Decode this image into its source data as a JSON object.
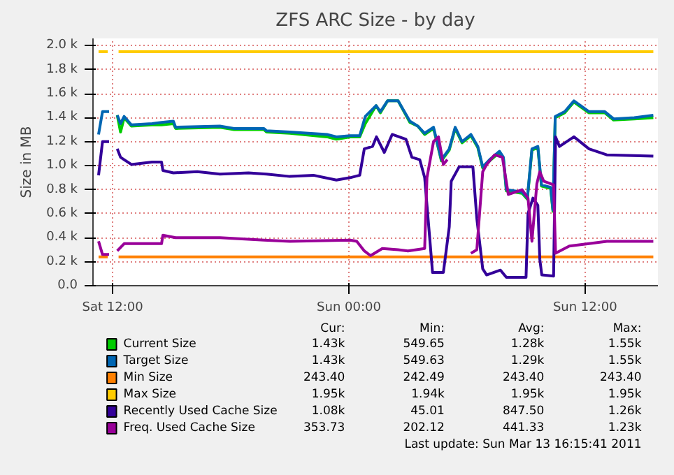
{
  "chart_data": {
    "type": "line",
    "title": "ZFS ARC Size - by day",
    "ylabel": "Size in MB",
    "xlim": [
      "2011-03-12T11:00",
      "2011-03-13T15:42"
    ],
    "ylim": [
      0,
      2060
    ],
    "xticks": [
      {
        "value": "2011-03-12T12:00",
        "label": "Sat 12:00"
      },
      {
        "value": "2011-03-13T00:00",
        "label": "Sun 00:00"
      },
      {
        "value": "2011-03-13T12:00",
        "label": "Sun 12:00"
      }
    ],
    "yticks": [
      {
        "value": 0,
        "label": "0.0"
      },
      {
        "value": 200,
        "label": "0.2 k"
      },
      {
        "value": 400,
        "label": "0.4 k"
      },
      {
        "value": 600,
        "label": "0.6 k"
      },
      {
        "value": 800,
        "label": "0.8 k"
      },
      {
        "value": 1000,
        "label": "1.0 k"
      },
      {
        "value": 1200,
        "label": "1.2 k"
      },
      {
        "value": 1400,
        "label": "1.4 k"
      },
      {
        "value": 1600,
        "label": "1.6 k"
      },
      {
        "value": 1800,
        "label": "1.8 k"
      },
      {
        "value": 2000,
        "label": "2.0 k"
      }
    ],
    "grid": true,
    "legend": "bottom",
    "marker": "none",
    "line_style": "solid",
    "series": [
      {
        "name": "Current Size",
        "color": "#00cc00",
        "x": [
          "2011-03-12T12:14",
          "2011-03-12T12:24",
          "2011-03-12T12:35",
          "2011-03-12T12:57",
          "2011-03-12T14:00",
          "2011-03-12T14:29",
          "2011-03-12T15:05",
          "2011-03-12T15:12",
          "2011-03-12T17:27",
          "2011-03-12T18:10",
          "2011-03-12T19:41",
          "2011-03-12T19:49",
          "2011-03-12T21:00",
          "2011-03-12T22:53",
          "2011-03-12T23:22",
          "2011-03-13T00:04",
          "2011-03-13T00:33",
          "2011-03-13T00:50",
          "2011-03-13T01:23",
          "2011-03-13T01:36",
          "2011-03-13T01:58",
          "2011-03-13T02:30",
          "2011-03-13T03:06",
          "2011-03-13T03:30",
          "2011-03-13T03:51",
          "2011-03-13T04:18",
          "2011-03-13T04:42",
          "2011-03-13T05:06",
          "2011-03-13T05:24",
          "2011-03-13T05:45",
          "2011-03-13T06:12",
          "2011-03-13T06:33",
          "2011-03-13T06:48",
          "2011-03-13T07:09",
          "2011-03-13T07:39",
          "2011-03-13T07:51",
          "2011-03-13T08:00",
          "2011-03-13T08:48",
          "2011-03-13T09:04",
          "2011-03-13T09:18",
          "2011-03-13T09:36",
          "2011-03-13T09:47",
          "2011-03-13T10:15",
          "2011-03-13T10:22",
          "2011-03-13T10:29",
          "2011-03-13T10:58",
          "2011-03-13T11:26",
          "2011-03-13T12:12",
          "2011-03-13T13:00",
          "2011-03-13T13:27",
          "2011-03-13T14:30",
          "2011-03-13T15:28"
        ],
        "values": [
          1420,
          1280,
          1400,
          1330,
          1340,
          1340,
          1350,
          1310,
          1320,
          1300,
          1300,
          1280,
          1270,
          1240,
          1220,
          1240,
          1240,
          1350,
          1500,
          1440,
          1540,
          1540,
          1360,
          1330,
          1260,
          1310,
          1040,
          1130,
          1310,
          1190,
          1250,
          1150,
          980,
          1040,
          1110,
          1060,
          790,
          770,
          720,
          1130,
          1150,
          830,
          810,
          620,
          1400,
          1440,
          1530,
          1440,
          1440,
          1380,
          1390,
          1400
        ]
      },
      {
        "name": "Target Size",
        "color": "#0066b3",
        "x": [
          "2011-03-12T11:17",
          "2011-03-12T11:29",
          "2011-03-12T11:49",
          "2011-03-12T12:00",
          "2011-03-12T12:14",
          "2011-03-12T12:24",
          "2011-03-12T12:35",
          "2011-03-12T12:57",
          "2011-03-12T14:00",
          "2011-03-12T14:29",
          "2011-03-12T15:05",
          "2011-03-12T15:12",
          "2011-03-12T17:27",
          "2011-03-12T18:10",
          "2011-03-12T19:41",
          "2011-03-12T19:49",
          "2011-03-12T21:00",
          "2011-03-12T22:53",
          "2011-03-12T23:22",
          "2011-03-13T00:04",
          "2011-03-13T00:33",
          "2011-03-13T00:50",
          "2011-03-13T01:23",
          "2011-03-13T01:36",
          "2011-03-13T01:58",
          "2011-03-13T02:30",
          "2011-03-13T03:06",
          "2011-03-13T03:30",
          "2011-03-13T03:51",
          "2011-03-13T04:18",
          "2011-03-13T04:42",
          "2011-03-13T05:06",
          "2011-03-13T05:24",
          "2011-03-13T05:45",
          "2011-03-13T06:12",
          "2011-03-13T06:33",
          "2011-03-13T06:48",
          "2011-03-13T07:09",
          "2011-03-13T07:39",
          "2011-03-13T07:51",
          "2011-03-13T08:00",
          "2011-03-13T08:48",
          "2011-03-13T09:04",
          "2011-03-13T09:18",
          "2011-03-13T09:36",
          "2011-03-13T09:47",
          "2011-03-13T10:15",
          "2011-03-13T10:22",
          "2011-03-13T10:29",
          "2011-03-13T10:58",
          "2011-03-13T11:26",
          "2011-03-13T12:12",
          "2011-03-13T13:00",
          "2011-03-13T13:27",
          "2011-03-13T14:30",
          "2011-03-13T15:28"
        ],
        "values": [
          1260,
          1450,
          1450,
          null,
          1420,
          1350,
          1410,
          1340,
          1350,
          1360,
          1370,
          1320,
          1330,
          1310,
          1310,
          1290,
          1280,
          1260,
          1240,
          1250,
          1250,
          1410,
          1500,
          1450,
          1540,
          1540,
          1370,
          1330,
          1270,
          1320,
          1050,
          1140,
          1320,
          1200,
          1260,
          1160,
          990,
          1050,
          1120,
          1070,
          800,
          780,
          730,
          1140,
          1160,
          840,
          820,
          630,
          1410,
          1450,
          1540,
          1450,
          1450,
          1390,
          1400,
          1420
        ]
      },
      {
        "name": "Min Size",
        "color": "#ff8000",
        "x": [
          "2011-03-12T11:17",
          "2011-03-12T11:45",
          "2011-03-12T11:51",
          "2011-03-12T12:18",
          "2011-03-13T15:28"
        ],
        "values": [
          240,
          240,
          null,
          240,
          240
        ]
      },
      {
        "name": "Max Size",
        "color": "#ffcc00",
        "x": [
          "2011-03-12T11:17",
          "2011-03-12T11:45",
          "2011-03-12T11:51",
          "2011-03-12T12:18",
          "2011-03-13T15:28"
        ],
        "values": [
          1950,
          1950,
          null,
          1950,
          1950
        ]
      },
      {
        "name": "Recently Used Cache Size",
        "color": "#330099",
        "x": [
          "2011-03-12T11:17",
          "2011-03-12T11:29",
          "2011-03-12T11:49",
          "2011-03-12T12:00",
          "2011-03-12T12:14",
          "2011-03-12T12:24",
          "2011-03-12T12:35",
          "2011-03-12T12:57",
          "2011-03-12T14:00",
          "2011-03-12T14:29",
          "2011-03-12T14:33",
          "2011-03-12T15:05",
          "2011-03-12T16:18",
          "2011-03-12T17:27",
          "2011-03-12T18:54",
          "2011-03-12T19:49",
          "2011-03-12T21:00",
          "2011-03-12T22:12",
          "2011-03-12T23:22",
          "2011-03-13T00:04",
          "2011-03-13T00:33",
          "2011-03-13T00:47",
          "2011-03-13T01:12",
          "2011-03-13T01:24",
          "2011-03-13T01:48",
          "2011-03-13T02:12",
          "2011-03-13T02:54",
          "2011-03-13T03:12",
          "2011-03-13T03:36",
          "2011-03-13T03:51",
          "2011-03-13T04:06",
          "2011-03-13T04:15",
          "2011-03-13T04:48",
          "2011-03-13T05:06",
          "2011-03-13T05:12",
          "2011-03-13T05:36",
          "2011-03-13T06:18",
          "2011-03-13T06:30",
          "2011-03-13T06:48",
          "2011-03-13T07:00",
          "2011-03-13T07:42",
          "2011-03-13T08:00",
          "2011-03-13T09:00",
          "2011-03-13T09:06",
          "2011-03-13T09:21",
          "2011-03-13T09:36",
          "2011-03-13T09:42",
          "2011-03-13T09:48",
          "2011-03-13T10:24",
          "2011-03-13T10:30",
          "2011-03-13T10:42",
          "2011-03-13T11:26",
          "2011-03-13T12:12",
          "2011-03-13T13:06",
          "2011-03-13T15:28"
        ],
        "values": [
          920,
          1200,
          1200,
          null,
          1140,
          1070,
          1050,
          1010,
          1030,
          1030,
          960,
          940,
          950,
          930,
          940,
          930,
          910,
          920,
          880,
          900,
          920,
          1140,
          1160,
          1240,
          1110,
          1260,
          1220,
          1070,
          1050,
          900,
          410,
          110,
          110,
          490,
          870,
          990,
          990,
          560,
          140,
          90,
          130,
          70,
          70,
          600,
          730,
          670,
          220,
          90,
          80,
          1240,
          1160,
          1240,
          1140,
          1090,
          1080
        ]
      },
      {
        "name": "Freq. Used Cache Size",
        "color": "#990099",
        "x": [
          "2011-03-12T11:17",
          "2011-03-12T11:29",
          "2011-03-12T11:49",
          "2011-03-12T12:00",
          "2011-03-12T12:14",
          "2011-03-12T12:35",
          "2011-03-12T12:57",
          "2011-03-12T14:29",
          "2011-03-12T14:33",
          "2011-03-12T15:12",
          "2011-03-12T17:27",
          "2011-03-12T19:41",
          "2011-03-12T21:00",
          "2011-03-13T00:04",
          "2011-03-13T00:24",
          "2011-03-13T00:47",
          "2011-03-13T01:06",
          "2011-03-13T01:42",
          "2011-03-13T02:30",
          "2011-03-13T03:00",
          "2011-03-13T03:51",
          "2011-03-13T03:58",
          "2011-03-13T04:18",
          "2011-03-13T04:33",
          "2011-03-13T04:48",
          "2011-03-13T05:00",
          "2011-03-13T05:06",
          "2011-03-13T06:12",
          "2011-03-13T06:30",
          "2011-03-13T06:48",
          "2011-03-13T07:00",
          "2011-03-13T07:24",
          "2011-03-13T07:48",
          "2011-03-13T08:06",
          "2011-03-13T08:48",
          "2011-03-13T09:06",
          "2011-03-13T09:18",
          "2011-03-13T09:33",
          "2011-03-13T09:42",
          "2011-03-13T09:54",
          "2011-03-13T10:24",
          "2011-03-13T10:30",
          "2011-03-13T11:12",
          "2011-03-13T12:12",
          "2011-03-13T13:06",
          "2011-03-13T15:28"
        ],
        "values": [
          370,
          260,
          260,
          null,
          290,
          350,
          350,
          350,
          420,
          400,
          400,
          380,
          370,
          380,
          370,
          290,
          250,
          310,
          300,
          290,
          310,
          900,
          1200,
          1240,
          1010,
          1050,
          null,
          270,
          300,
          950,
          1010,
          1090,
          1070,
          760,
          800,
          730,
          370,
          850,
          950,
          870,
          840,
          270,
          330,
          350,
          370,
          370
        ]
      }
    ],
    "annotations": [
      "Cur:",
      "Min:",
      "Avg:",
      "Max:",
      "1.43k",
      "549.65",
      "1.28k",
      "1.55k",
      "1.43k",
      "549.63",
      "1.29k",
      "1.55k",
      "243.40",
      "242.49",
      "243.40",
      "243.40",
      "1.95k",
      "1.94k",
      "1.95k",
      "1.95k",
      "1.08k",
      "45.01",
      "847.50",
      "1.26k",
      "353.73",
      "202.12",
      "441.33",
      "1.23k",
      "Last update: Sun Mar 13 16:15:41 2011"
    ]
  }
}
